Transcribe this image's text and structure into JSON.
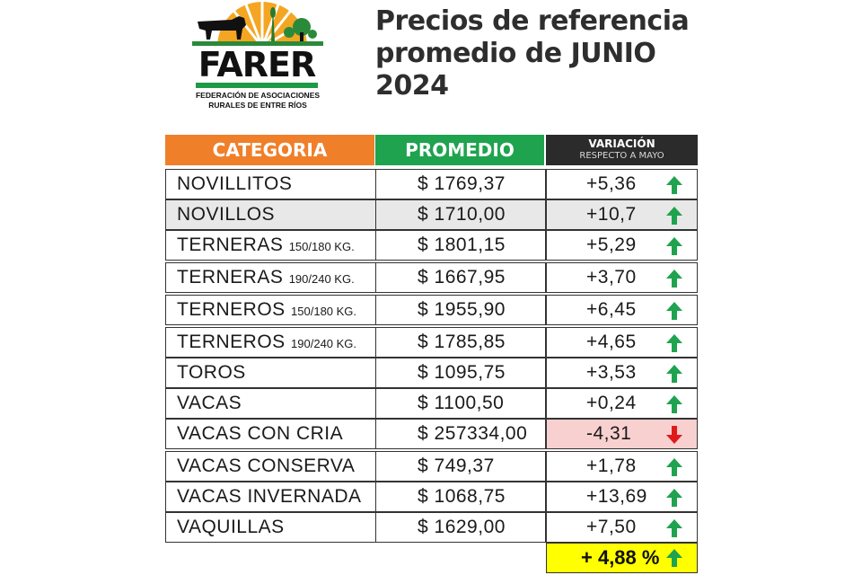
{
  "logo": {
    "name": "FARER",
    "subtitle_line1": "FEDERACIÓN DE ASOCIACIONES",
    "subtitle_line2": "RURALES DE ENTRE RÍOS"
  },
  "title": {
    "line1": "Precios de referencia",
    "line2": "promedio de JUNIO",
    "line3": "2024"
  },
  "table": {
    "headers": {
      "category": "CATEGORIA",
      "average": "PROMEDIO",
      "variation": "VARIACIÓN",
      "variation_sub": "RESPECTO A MAYO"
    },
    "rows": [
      {
        "category": "NOVILLITOS",
        "note": "",
        "price": "$ 1769,37",
        "variation": "+5,36",
        "trend": "up"
      },
      {
        "category": "NOVILLOS",
        "note": "",
        "price": "$ 1710,00",
        "variation": "+10,7",
        "trend": "up"
      },
      {
        "category": "TERNERAS",
        "note": "150/180 KG.",
        "price": "$ 1801,15",
        "variation": "+5,29",
        "trend": "up"
      },
      {
        "category": "TERNERAS",
        "note": "190/240 KG.",
        "price": "$ 1667,95",
        "variation": "+3,70",
        "trend": "up"
      },
      {
        "category": "TERNEROS",
        "note": "150/180 KG.",
        "price": "$ 1955,90",
        "variation": "+6,45",
        "trend": "up"
      },
      {
        "category": "TERNEROS",
        "note": "190/240 KG.",
        "price": "$ 1785,85",
        "variation": "+4,65",
        "trend": "up"
      },
      {
        "category": "TOROS",
        "note": "",
        "price": "$ 1095,75",
        "variation": "+3,53",
        "trend": "up"
      },
      {
        "category": "VACAS",
        "note": "",
        "price": "$ 1100,50",
        "variation": "+0,24",
        "trend": "up"
      },
      {
        "category": "VACAS CON CRIA",
        "note": "",
        "price": "$ 257334,00",
        "variation": "-4,31",
        "trend": "down"
      },
      {
        "category": "VACAS CONSERVA",
        "note": "",
        "price": "$ 749,37",
        "variation": "+1,78",
        "trend": "up"
      },
      {
        "category": "VACAS INVERNADA",
        "note": "",
        "price": "$ 1068,75",
        "variation": "+13,69",
        "trend": "up"
      },
      {
        "category": "VAQUILLAS",
        "note": "",
        "price": "$ 1629,00",
        "variation": "+7,50",
        "trend": "up"
      }
    ],
    "total": "+ 4,88 %"
  },
  "colors": {
    "category_header": "#f07f2a",
    "average_header": "#1fa34f",
    "variation_header": "#2b2b2b",
    "up_arrow": "#1fa34f",
    "down_arrow": "#e01a1a",
    "negative_fill": "#f8d0d0",
    "total_fill": "#ffff00"
  },
  "icons": {
    "up": "arrow-up-icon",
    "down": "arrow-down-icon"
  }
}
